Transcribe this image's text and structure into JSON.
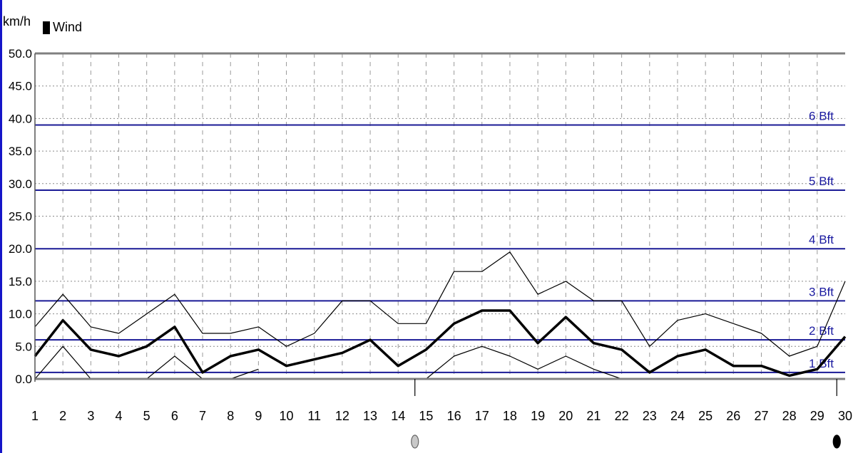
{
  "chart_data": {
    "type": "line",
    "unit_label": "km/h",
    "legend": [
      {
        "label": "Wind",
        "color": "#000000"
      }
    ],
    "x": [
      1,
      2,
      3,
      4,
      5,
      6,
      7,
      8,
      9,
      10,
      11,
      12,
      13,
      14,
      15,
      16,
      17,
      18,
      19,
      20,
      21,
      22,
      23,
      24,
      25,
      26,
      27,
      28,
      29,
      30
    ],
    "ylim": [
      0,
      50
    ],
    "yticks": [
      "0.0",
      "5.0",
      "10.0",
      "15.0",
      "20.0",
      "25.0",
      "30.0",
      "35.0",
      "40.0",
      "45.0",
      "50.0"
    ],
    "grid": true,
    "series": [
      {
        "name": "Wind",
        "style": "bold",
        "color": "#000000",
        "values": [
          3.5,
          9,
          4.5,
          3.5,
          5,
          8,
          1,
          3.5,
          4.5,
          2,
          3,
          4,
          6,
          2,
          4.5,
          8.5,
          10.5,
          10.5,
          5.5,
          9.5,
          5.5,
          4.5,
          1,
          3.5,
          4.5,
          2,
          2,
          0.5,
          1.5,
          6.5
        ]
      },
      {
        "style": "thin",
        "color": "#000000",
        "values": [
          8,
          13,
          8,
          7,
          10,
          13,
          7,
          7,
          8,
          5,
          7,
          12,
          12,
          8.5,
          8.5,
          16.5,
          16.5,
          19.5,
          13,
          15,
          12,
          12,
          5,
          9,
          10,
          8.5,
          7,
          3.5,
          5,
          15
        ]
      },
      {
        "style": "thin",
        "color": "#000000",
        "values": [
          0,
          5,
          0,
          null,
          0,
          3.5,
          0,
          0,
          1.5,
          null,
          null,
          null,
          1.5,
          null,
          0,
          3.5,
          5,
          3.5,
          1.5,
          3.5,
          1.5,
          0,
          null,
          null,
          null,
          null,
          null,
          null,
          null,
          null
        ]
      }
    ],
    "beaufort_lines": [
      {
        "label": "1 Bft",
        "value": 1
      },
      {
        "label": "2 Bft",
        "value": 6
      },
      {
        "label": "3 Bft",
        "value": 12
      },
      {
        "label": "4 Bft",
        "value": 20
      },
      {
        "label": "5 Bft",
        "value": 29
      },
      {
        "label": "6 Bft",
        "value": 39
      }
    ],
    "moon_phases": [
      {
        "day": 14.6,
        "phase": "full-moon"
      },
      {
        "day": 29.7,
        "phase": "new-moon"
      }
    ]
  }
}
